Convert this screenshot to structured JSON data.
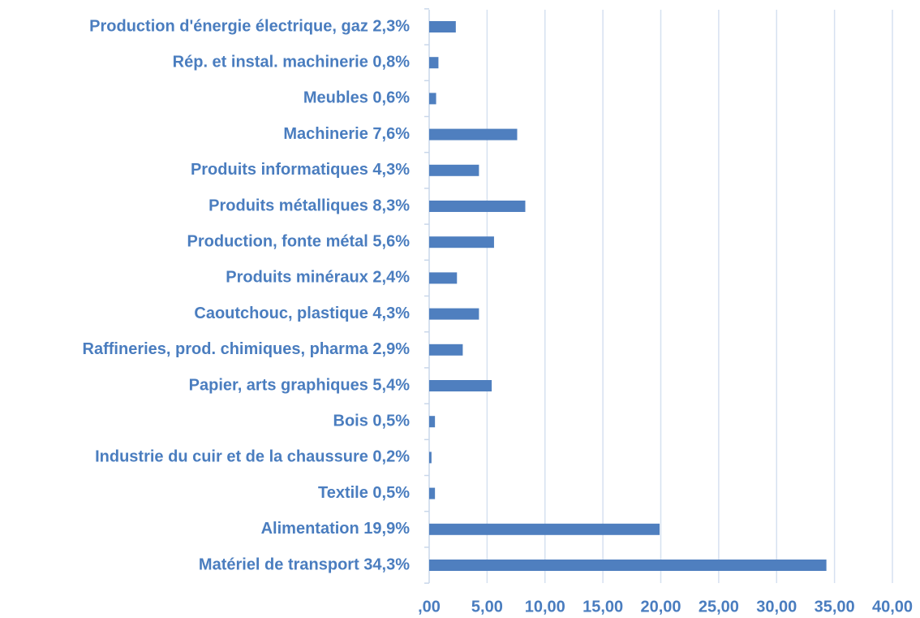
{
  "chart_data": {
    "type": "bar",
    "orientation": "horizontal",
    "categories": [
      "Production d'énergie électrique, gaz 2,3%",
      "Rép. et instal. machinerie 0,8%",
      "Meubles 0,6%",
      "Machinerie 7,6%",
      "Produits informatiques 4,3%",
      "Produits métalliques 8,3%",
      "Production, fonte métal 5,6%",
      "Produits minéraux 2,4%",
      "Caoutchouc, plastique 4,3%",
      "Raffineries, prod. chimiques, pharma 2,9%",
      "Papier, arts graphiques 5,4%",
      "Bois 0,5%",
      "Industrie du cuir et de la chaussure 0,2%",
      "Textile 0,5%",
      "Alimentation 19,9%",
      "Matériel de transport 34,3%"
    ],
    "values": [
      2.3,
      0.8,
      0.6,
      7.6,
      4.3,
      8.3,
      5.6,
      2.4,
      4.3,
      2.9,
      5.4,
      0.5,
      0.2,
      0.5,
      19.9,
      34.3
    ],
    "color": "#4f7fbf",
    "xlim": [
      0,
      40
    ],
    "xticks": [
      {
        "value": 0,
        "label": ",00"
      },
      {
        "value": 5,
        "label": "5,00"
      },
      {
        "value": 10,
        "label": "10,00"
      },
      {
        "value": 15,
        "label": "15,00"
      },
      {
        "value": 20,
        "label": "20,00"
      },
      {
        "value": 25,
        "label": "25,00"
      },
      {
        "value": 30,
        "label": "30,00"
      },
      {
        "value": 35,
        "label": "35,00"
      },
      {
        "value": 40,
        "label": "40,00"
      }
    ],
    "grid": true
  }
}
